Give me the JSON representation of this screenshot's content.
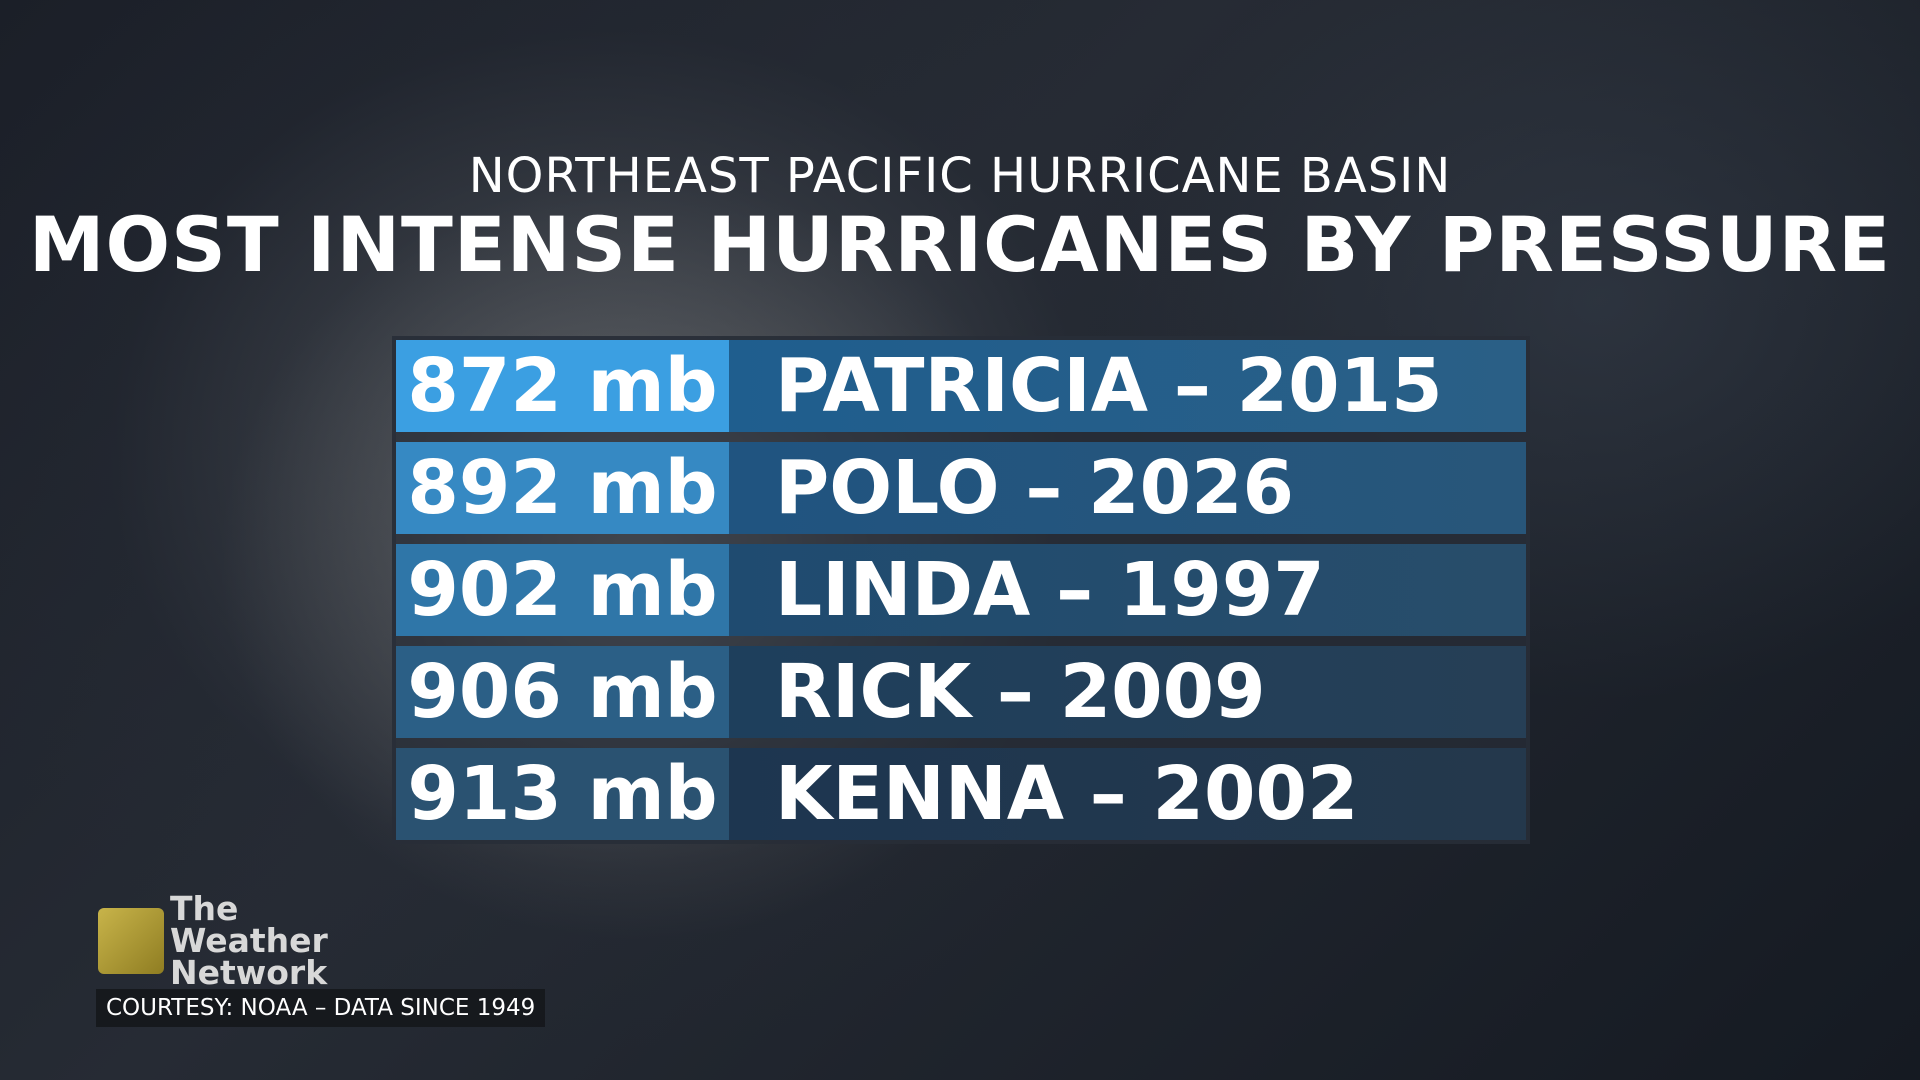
{
  "header": {
    "subtitle": "NORTHEAST PACIFIC HURRICANE BASIN",
    "title": "MOST INTENSE HURRICANES BY PRESSURE"
  },
  "table": {
    "rows": [
      {
        "pressure": "872 mb",
        "name": "PATRICIA – 2015"
      },
      {
        "pressure": "892 mb",
        "name": "POLO – 2026"
      },
      {
        "pressure": "902 mb",
        "name": "LINDA – 1997"
      },
      {
        "pressure": "906 mb",
        "name": "RICK – 2009"
      },
      {
        "pressure": "913 mb",
        "name": "KENNA – 2002"
      }
    ]
  },
  "footer": {
    "logo": "The Weather Network",
    "credit": "COURTESY: NOAA – DATA SINCE 1949"
  }
}
